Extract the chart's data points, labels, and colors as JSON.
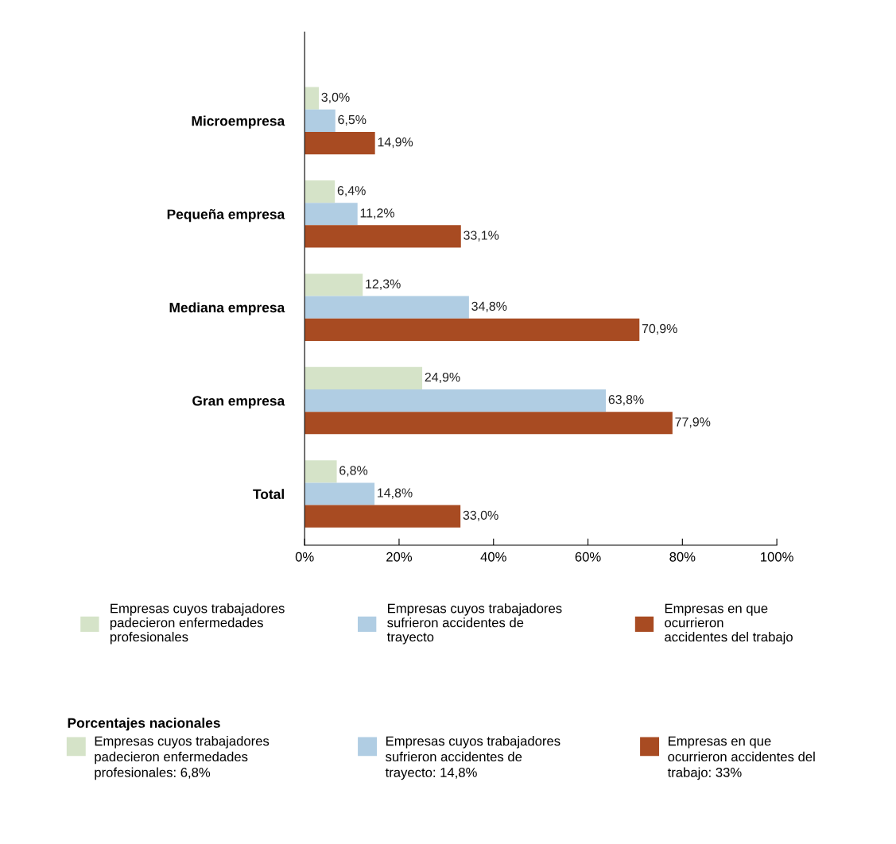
{
  "chart_data": {
    "type": "bar",
    "orientation": "horizontal",
    "categories": [
      "Microempresa",
      "Pequeña empresa",
      "Mediana empresa",
      "Gran empresa",
      "Total"
    ],
    "series": [
      {
        "name": "Empresas cuyos trabajadores\npadecieron enfermedades\nprofesionales",
        "color": "#d5e3c8",
        "values": [
          3.0,
          6.4,
          12.3,
          24.9,
          6.8
        ],
        "value_labels": [
          "3,0%",
          "6,4%",
          "12,3%",
          "24,9%",
          "6,8%"
        ]
      },
      {
        "name": "Empresas cuyos trabajadores\nsufrieron accidentes de\ntrayecto",
        "color": "#b0cde3",
        "values": [
          6.5,
          11.2,
          34.8,
          63.8,
          14.8
        ],
        "value_labels": [
          "6,5%",
          "11,2%",
          "34,8%",
          "63,8%",
          "14,8%"
        ]
      },
      {
        "name": "Empresas en que\nocurrieron\naccidentes del trabajo",
        "color": "#a84b22",
        "values": [
          14.9,
          33.1,
          70.9,
          77.9,
          33.0
        ],
        "value_labels": [
          "14,9%",
          "33,1%",
          "70,9%",
          "77,9%",
          "33,0%"
        ]
      }
    ],
    "xlim": [
      0,
      100
    ],
    "xticks": [
      {
        "value": 0,
        "label": "0%"
      },
      {
        "value": 20,
        "label": "20%"
      },
      {
        "value": 40,
        "label": "40%"
      },
      {
        "value": 60,
        "label": "60%"
      },
      {
        "value": 80,
        "label": "80%"
      },
      {
        "value": 100,
        "label": "100%"
      }
    ],
    "grid": false,
    "legend": "bottom",
    "annotations": [
      "Porcentajes nacionales",
      "Empresas cuyos trabajadores\npadecieron enfermedades\nprofesionales: 6,8%",
      "Empresas cuyos trabajadores\nsufrieron accidentes de\ntrayecto: 14,8%",
      "Empresas en que\nocurrieron accidentes del\ntrabajo: 33%"
    ]
  }
}
